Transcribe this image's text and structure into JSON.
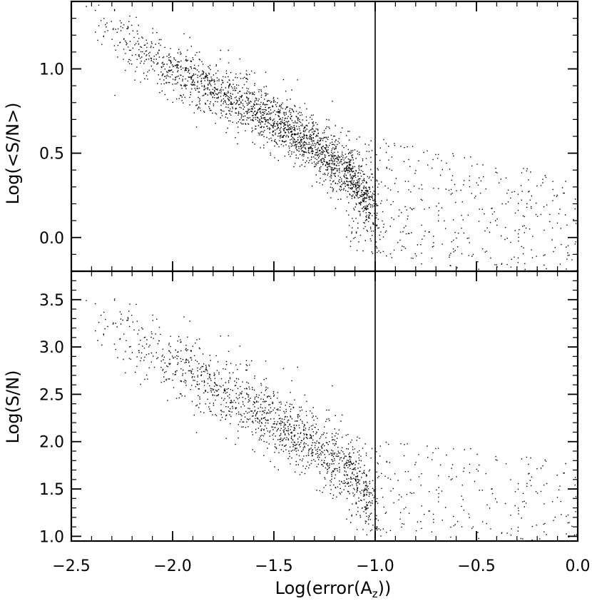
{
  "chart_data": [
    {
      "type": "scatter",
      "title": "",
      "xlabel": "Log(error(A_z))",
      "ylabel": "Log(<S/N>)",
      "xlim": [
        -2.5,
        0.0
      ],
      "ylim": [
        -0.2,
        1.4
      ],
      "x_ticks": [
        -2.5,
        -2.0,
        -1.5,
        -1.0,
        -0.5,
        0.0
      ],
      "y_ticks": [
        0.0,
        0.5,
        1.0
      ],
      "y_tick_labels": [
        "0.0",
        "0.5",
        "1.0"
      ],
      "reference_line_x": -1.0,
      "point_color": "#000000",
      "density_trend": [
        {
          "x": -2.4,
          "y": 1.28
        },
        {
          "x": -2.2,
          "y": 1.13
        },
        {
          "x": -2.0,
          "y": 1.0
        },
        {
          "x": -1.8,
          "y": 0.88
        },
        {
          "x": -1.6,
          "y": 0.76
        },
        {
          "x": -1.4,
          "y": 0.63
        },
        {
          "x": -1.2,
          "y": 0.46
        },
        {
          "x": -1.1,
          "y": 0.32
        },
        {
          "x": -1.05,
          "y": 0.24
        }
      ],
      "grid": false
    },
    {
      "type": "scatter",
      "title": "",
      "xlabel": "Log(error(A_z))",
      "ylabel": "Log(S/N)",
      "xlim": [
        -2.5,
        0.0
      ],
      "ylim": [
        0.95,
        3.8
      ],
      "x_ticks": [
        -2.5,
        -2.0,
        -1.5,
        -1.0,
        -0.5,
        0.0
      ],
      "x_tick_labels": [
        "−2.5",
        "−2.0",
        "−1.5",
        "−1.0",
        "−0.5",
        "0.0"
      ],
      "y_ticks": [
        1.0,
        1.5,
        2.0,
        2.5,
        3.0,
        3.5
      ],
      "y_tick_labels": [
        "1.0",
        "1.5",
        "2.0",
        "2.5",
        "3.0",
        "3.5"
      ],
      "reference_line_x": -1.0,
      "point_color": "#000000",
      "density_trend": [
        {
          "x": -2.4,
          "y": 3.3
        },
        {
          "x": -2.2,
          "y": 3.05
        },
        {
          "x": -2.0,
          "y": 2.85
        },
        {
          "x": -1.8,
          "y": 2.6
        },
        {
          "x": -1.6,
          "y": 2.35
        },
        {
          "x": -1.4,
          "y": 2.1
        },
        {
          "x": -1.2,
          "y": 1.82
        },
        {
          "x": -1.1,
          "y": 1.62
        },
        {
          "x": -1.05,
          "y": 1.45
        }
      ],
      "grid": false
    }
  ],
  "labels": {
    "xlabel_prefix": "Log(error(A",
    "xlabel_sub": "z",
    "xlabel_suffix": "))",
    "top_ylabel": "Log(<S/N>)",
    "bottom_ylabel": "Log(S/N)"
  }
}
